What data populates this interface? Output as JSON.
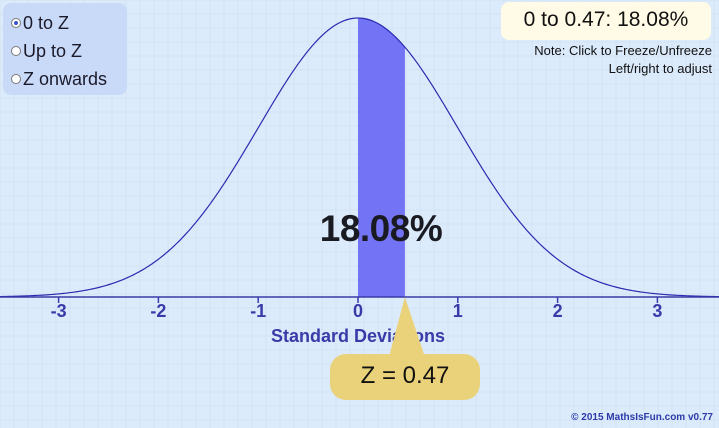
{
  "modes": [
    {
      "label": "0 to Z",
      "checked": true
    },
    {
      "label": "Up to Z",
      "checked": false
    },
    {
      "label": "Z onwards",
      "checked": false
    }
  ],
  "readout": "0 to 0.47: 18.08%",
  "note": {
    "line1": "Note: Click to Freeze/Unfreeze",
    "line2": "Left/right to adjust"
  },
  "chart": {
    "shaded_percent": "18.08%",
    "z_label": "Z = 0.47",
    "z_value": 0.47,
    "xlabel": "Standard Deviations",
    "ticks": [
      {
        "value": -3,
        "label": "-3"
      },
      {
        "value": -2,
        "label": "-2"
      },
      {
        "value": -1,
        "label": "-1"
      },
      {
        "value": 0,
        "label": "0"
      },
      {
        "value": 1,
        "label": "1"
      },
      {
        "value": 2,
        "label": "2"
      },
      {
        "value": 3,
        "label": "3"
      }
    ]
  },
  "copyright": "© 2015 MathsIsFun.com v0.77",
  "colors": {
    "background": "#dcebfb",
    "curve": "#2b2bb0",
    "shade": "#7373f5",
    "axis": "#3a3aa8",
    "badge": "#ead27a"
  }
}
